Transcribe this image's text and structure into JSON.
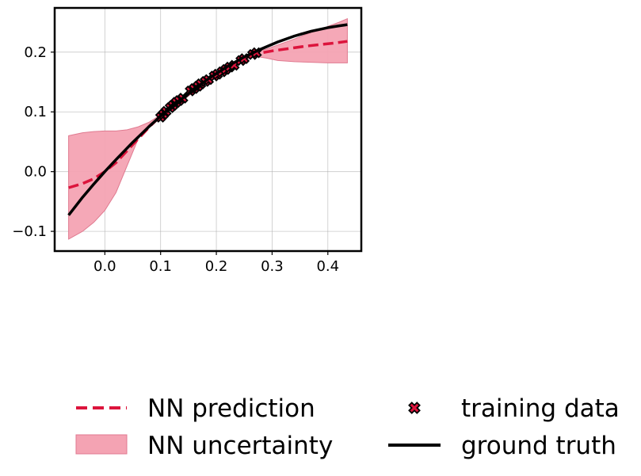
{
  "chart_data": {
    "type": "line",
    "title": "",
    "xlabel": "",
    "ylabel": "",
    "xlim": [
      -0.09,
      0.46
    ],
    "ylim": [
      -0.133,
      0.274
    ],
    "grid": true,
    "legend_placement": "bottom, outside plot, two columns",
    "x_ticks": [
      0.0,
      0.1,
      0.2,
      0.3,
      0.4
    ],
    "x_tick_labels": [
      "0.0",
      "0.1",
      "0.2",
      "0.3",
      "0.4"
    ],
    "y_ticks": [
      -0.1,
      0.0,
      0.1,
      0.2
    ],
    "y_tick_labels": [
      "−0.1",
      "0.0",
      "0.1",
      "0.2"
    ],
    "colors": {
      "prediction": "#dc143c",
      "uncertainty_fill": "#f4a3b3",
      "uncertainty_edge": "#e07a90",
      "ground_truth": "#000000",
      "training_marker": "#dc143c"
    },
    "series": [
      {
        "name": "NN prediction",
        "kind": "dashed-line",
        "x": [
          -0.065,
          -0.04,
          -0.02,
          0.0,
          0.02,
          0.05,
          0.08,
          0.1,
          0.13,
          0.16,
          0.19,
          0.22,
          0.25,
          0.27,
          0.3,
          0.33,
          0.36,
          0.39,
          0.41,
          0.435
        ],
        "y": [
          -0.027,
          -0.02,
          -0.012,
          0.0,
          0.015,
          0.045,
          0.075,
          0.093,
          0.115,
          0.137,
          0.157,
          0.175,
          0.19,
          0.197,
          0.202,
          0.206,
          0.21,
          0.213,
          0.215,
          0.218
        ]
      },
      {
        "name": "NN uncertainty",
        "kind": "band",
        "x": [
          -0.065,
          -0.04,
          -0.02,
          0.0,
          0.02,
          0.04,
          0.06,
          0.08,
          0.1,
          0.13,
          0.16,
          0.19,
          0.22,
          0.25,
          0.27,
          0.29,
          0.31,
          0.34,
          0.37,
          0.4,
          0.42,
          0.435
        ],
        "upper": [
          0.06,
          0.065,
          0.067,
          0.068,
          0.068,
          0.07,
          0.075,
          0.083,
          0.095,
          0.117,
          0.139,
          0.159,
          0.177,
          0.192,
          0.2,
          0.205,
          0.212,
          0.222,
          0.233,
          0.243,
          0.25,
          0.256
        ],
        "lower": [
          -0.113,
          -0.1,
          -0.085,
          -0.065,
          -0.035,
          0.01,
          0.055,
          0.08,
          0.09,
          0.112,
          0.134,
          0.154,
          0.172,
          0.187,
          0.193,
          0.19,
          0.186,
          0.184,
          0.183,
          0.182,
          0.182,
          0.182
        ]
      },
      {
        "name": "ground truth",
        "kind": "solid-line",
        "x": [
          -0.065,
          -0.04,
          -0.02,
          0.0,
          0.02,
          0.05,
          0.08,
          0.1,
          0.13,
          0.16,
          0.19,
          0.22,
          0.25,
          0.28,
          0.31,
          0.34,
          0.37,
          0.4,
          0.42,
          0.435
        ],
        "y": [
          -0.073,
          -0.043,
          -0.021,
          0.0,
          0.02,
          0.049,
          0.076,
          0.093,
          0.116,
          0.138,
          0.158,
          0.176,
          0.192,
          0.205,
          0.217,
          0.227,
          0.235,
          0.241,
          0.244,
          0.246
        ]
      },
      {
        "name": "training data",
        "kind": "scatter",
        "x": [
          0.1,
          0.105,
          0.11,
          0.117,
          0.122,
          0.128,
          0.133,
          0.14,
          0.153,
          0.16,
          0.167,
          0.172,
          0.18,
          0.186,
          0.196,
          0.202,
          0.21,
          0.217,
          0.224,
          0.232,
          0.244,
          0.25,
          0.265,
          0.272
        ],
        "y": [
          0.091,
          0.096,
          0.101,
          0.107,
          0.111,
          0.116,
          0.119,
          0.123,
          0.135,
          0.139,
          0.143,
          0.147,
          0.151,
          0.154,
          0.16,
          0.163,
          0.167,
          0.171,
          0.175,
          0.178,
          0.186,
          0.189,
          0.196,
          0.199
        ]
      }
    ]
  }
}
